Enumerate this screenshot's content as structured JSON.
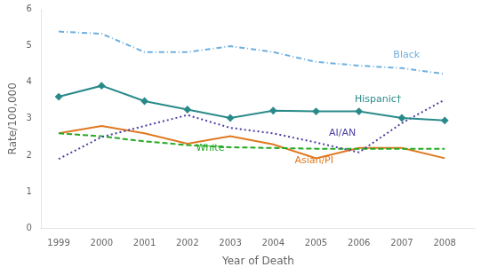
{
  "chart_data": {
    "type": "line",
    "x_label": "Year of Death",
    "y_label": "Rate/100,000",
    "x": [
      1999,
      2000,
      2001,
      2002,
      2003,
      2004,
      2005,
      2006,
      2007,
      2008
    ],
    "series": [
      {
        "name": "Black",
        "color": "#6EB0E0",
        "line_style": "dashdot",
        "marker": "none",
        "values": [
          5.38,
          5.32,
          4.82,
          4.82,
          4.98,
          4.82,
          4.55,
          4.45,
          4.38,
          4.22
        ]
      },
      {
        "name": "Hispanic†",
        "color": "#2A8A8A",
        "line_style": "solid",
        "marker": "diamond",
        "values": [
          3.6,
          3.9,
          3.48,
          3.25,
          3.02,
          3.22,
          3.2,
          3.2,
          3.02,
          2.95
        ]
      },
      {
        "name": "AI/AN",
        "color": "#4B3FA0",
        "line_style": "dotted",
        "marker": "none",
        "values": [
          1.9,
          2.5,
          2.8,
          3.1,
          2.75,
          2.6,
          2.35,
          2.08,
          2.88,
          3.52
        ]
      },
      {
        "name": "White",
        "color": "#22AA22",
        "line_style": "dashed",
        "marker": "none",
        "values": [
          2.6,
          2.52,
          2.38,
          2.28,
          2.22,
          2.2,
          2.18,
          2.18,
          2.18,
          2.18
        ]
      },
      {
        "name": "Asian/PI",
        "color": "#E07820",
        "line_style": "solid",
        "marker": "none",
        "values": [
          2.6,
          2.8,
          2.6,
          2.32,
          2.52,
          2.3,
          1.92,
          2.2,
          2.2,
          1.92
        ]
      }
    ],
    "annotations": [
      {
        "text": "Black",
        "x": 2006.8,
        "y": 4.6
      },
      {
        "text": "Hispanic†",
        "x": 2005.9,
        "y": 3.38
      },
      {
        "text": "AI/AN",
        "x": 2005.3,
        "y": 2.48
      },
      {
        "text": "White",
        "x": 2002.2,
        "y": 2.05
      },
      {
        "text": "Asian/PI",
        "x": 2004.5,
        "y": 1.72
      }
    ],
    "xlim": [
      1998.6,
      2008.7
    ],
    "xticks": [
      1999,
      2000,
      2001,
      2002,
      2003,
      2004,
      2005,
      2006,
      2007,
      2008
    ],
    "ylim": [
      0,
      6
    ],
    "yticks": [
      0,
      1,
      2,
      3,
      4,
      5,
      6
    ],
    "grid": false
  }
}
